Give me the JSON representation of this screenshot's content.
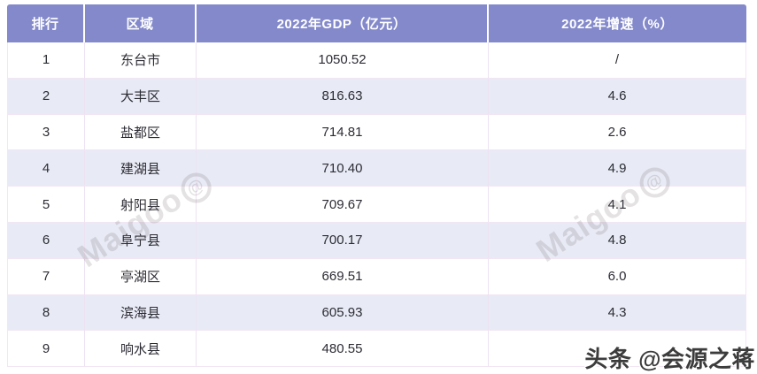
{
  "chart_data": {
    "type": "table",
    "title": "",
    "columns": [
      "排行",
      "区域",
      "2022年GDP（亿元）",
      "2022年增速（%）"
    ],
    "rows": [
      [
        "1",
        "东台市",
        "1050.52",
        "/"
      ],
      [
        "2",
        "大丰区",
        "816.63",
        "4.6"
      ],
      [
        "3",
        "盐都区",
        "714.81",
        "2.6"
      ],
      [
        "4",
        "建湖县",
        "710.40",
        "4.9"
      ],
      [
        "5",
        "射阳县",
        "709.67",
        "4.1"
      ],
      [
        "6",
        "阜宁县",
        "700.17",
        "4.8"
      ],
      [
        "7",
        "亭湖区",
        "669.51",
        "6.0"
      ],
      [
        "8",
        "滨海县",
        "605.93",
        "4.3"
      ],
      [
        "9",
        "响水县",
        "480.55",
        ""
      ]
    ]
  },
  "table": {
    "headers": {
      "rank": "排行",
      "region": "区域",
      "gdp": "2022年GDP（亿元）",
      "growth": "2022年增速（%）"
    },
    "rows": [
      {
        "rank": "1",
        "region": "东台市",
        "gdp": "1050.52",
        "growth": "/"
      },
      {
        "rank": "2",
        "region": "大丰区",
        "gdp": "816.63",
        "growth": "4.6"
      },
      {
        "rank": "3",
        "region": "盐都区",
        "gdp": "714.81",
        "growth": "2.6"
      },
      {
        "rank": "4",
        "region": "建湖县",
        "gdp": "710.40",
        "growth": "4.9"
      },
      {
        "rank": "5",
        "region": "射阳县",
        "gdp": "709.67",
        "growth": "4.1"
      },
      {
        "rank": "6",
        "region": "阜宁县",
        "gdp": "700.17",
        "growth": "4.8"
      },
      {
        "rank": "7",
        "region": "亭湖区",
        "gdp": "669.51",
        "growth": "6.0"
      },
      {
        "rank": "8",
        "region": "滨海县",
        "gdp": "605.93",
        "growth": "4.3"
      },
      {
        "rank": "9",
        "region": "响水县",
        "gdp": "480.55",
        "growth": ""
      }
    ]
  },
  "watermarks": {
    "site": "Maigoo",
    "site_logo_glyph": "@",
    "byline": "头条 @会源之蒋"
  },
  "colors": {
    "header_bg": "#8389CA",
    "header_text": "#FFFFFF",
    "stripe_bg": "#E8EAF5",
    "row_bg": "#FFFFFF",
    "divider": "#F2E6F4",
    "body_text": "#2C2C34",
    "byline_text": "#3C3C3C"
  }
}
